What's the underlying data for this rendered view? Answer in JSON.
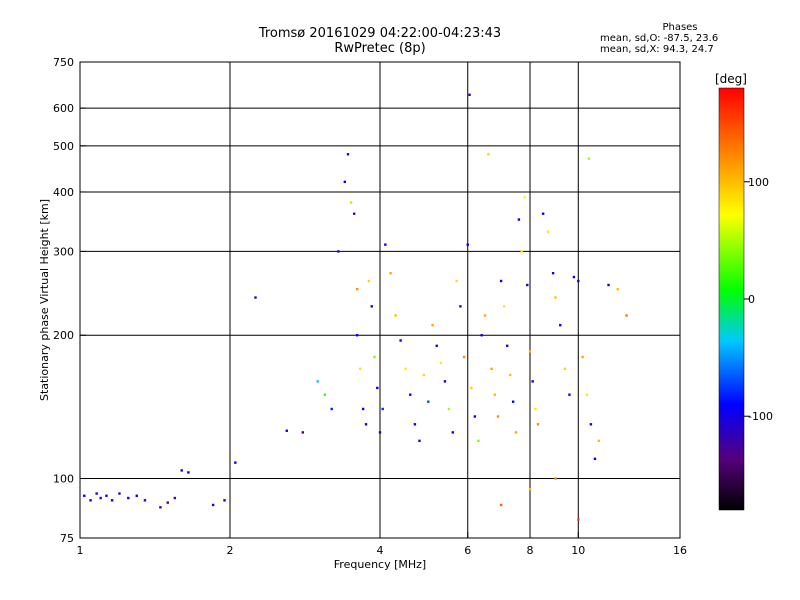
{
  "title": {
    "line1": "Tromsø 20161029 04:22:00-04:23:43",
    "line2": "RwPretec (8p)"
  },
  "phases": {
    "heading": "Phases",
    "o_stats": "mean, sd,O: -87.5, 23.6",
    "x_stats": "mean, sd,X:  94.3, 24.7"
  },
  "colorbar": {
    "label": "[deg]",
    "ticks": [
      {
        "value": 100,
        "label": "100"
      },
      {
        "value": 0,
        "label": "0"
      },
      {
        "value": -100,
        "label": "-100"
      }
    ],
    "range": [
      -180,
      180
    ]
  },
  "chart_data": {
    "type": "scatter",
    "xscale": "log",
    "yscale": "log",
    "xlabel": "Frequency [MHz]",
    "ylabel": "Stationary phase Virtual Height [km]",
    "xlim": [
      1,
      16
    ],
    "ylim": [
      75,
      750
    ],
    "xticks": [
      {
        "value": 1,
        "label": "1"
      },
      {
        "value": 2,
        "label": "2"
      },
      {
        "value": 4,
        "label": "4"
      },
      {
        "value": 6,
        "label": "6"
      },
      {
        "value": 8,
        "label": "8"
      },
      {
        "value": 10,
        "label": "10"
      },
      {
        "value": 16,
        "label": "16"
      }
    ],
    "yticks": [
      {
        "value": 75,
        "label": "75"
      },
      {
        "value": 100,
        "label": "100"
      },
      {
        "value": 200,
        "label": "200"
      },
      {
        "value": 300,
        "label": "300"
      },
      {
        "value": 400,
        "label": "400"
      },
      {
        "value": 500,
        "label": "500"
      },
      {
        "value": 600,
        "label": "600"
      },
      {
        "value": 750,
        "label": "750"
      }
    ],
    "grid_x": [
      2,
      4,
      6,
      8,
      10
    ],
    "grid_y": [
      100,
      200,
      300,
      400,
      500,
      600
    ],
    "series": [
      {
        "points": [
          [
            1.02,
            92,
            -95
          ],
          [
            1.05,
            90,
            -110
          ],
          [
            1.08,
            93,
            -100
          ],
          [
            1.1,
            91,
            -120
          ],
          [
            1.13,
            92,
            -105
          ],
          [
            1.16,
            90,
            -98
          ],
          [
            1.2,
            93,
            -115
          ],
          [
            1.25,
            91,
            -102
          ],
          [
            1.3,
            92,
            -95
          ],
          [
            1.35,
            90,
            -108
          ],
          [
            1.45,
            87,
            -130
          ],
          [
            1.5,
            89,
            -140
          ],
          [
            1.55,
            91,
            -125
          ],
          [
            1.6,
            104,
            -100
          ],
          [
            1.65,
            103,
            -90
          ],
          [
            1.85,
            88,
            -110
          ],
          [
            1.95,
            90,
            -100
          ],
          [
            2.05,
            108,
            -105
          ],
          [
            2.25,
            240,
            -120
          ],
          [
            2.6,
            126,
            -100
          ],
          [
            2.8,
            125,
            -140
          ],
          [
            3.0,
            160,
            -30
          ],
          [
            3.1,
            150,
            20
          ],
          [
            3.2,
            140,
            -80
          ],
          [
            3.3,
            300,
            -110
          ],
          [
            3.4,
            420,
            -100
          ],
          [
            3.45,
            480,
            -120
          ],
          [
            3.5,
            380,
            50
          ],
          [
            3.55,
            360,
            -130
          ],
          [
            3.6,
            250,
            120
          ],
          [
            3.6,
            200,
            -90
          ],
          [
            3.65,
            170,
            80
          ],
          [
            3.7,
            140,
            -105
          ],
          [
            3.75,
            130,
            -100
          ],
          [
            3.8,
            260,
            90
          ],
          [
            3.85,
            230,
            -110
          ],
          [
            3.9,
            180,
            40
          ],
          [
            3.95,
            155,
            -95
          ],
          [
            4.0,
            125,
            -110
          ],
          [
            4.05,
            140,
            -80
          ],
          [
            4.1,
            310,
            -100
          ],
          [
            4.2,
            270,
            110
          ],
          [
            4.3,
            220,
            100
          ],
          [
            4.4,
            195,
            -100
          ],
          [
            4.5,
            170,
            80
          ],
          [
            4.6,
            150,
            -100
          ],
          [
            4.7,
            130,
            -90
          ],
          [
            4.8,
            120,
            -110
          ],
          [
            4.9,
            165,
            90
          ],
          [
            5.0,
            145,
            -70
          ],
          [
            5.1,
            210,
            110
          ],
          [
            5.2,
            190,
            -120
          ],
          [
            5.3,
            175,
            80
          ],
          [
            5.4,
            160,
            -100
          ],
          [
            5.5,
            140,
            50
          ],
          [
            5.6,
            125,
            -105
          ],
          [
            5.7,
            260,
            85
          ],
          [
            5.8,
            230,
            -115
          ],
          [
            5.9,
            180,
            120
          ],
          [
            6.0,
            310,
            -90
          ],
          [
            6.05,
            640,
            -130
          ],
          [
            6.1,
            155,
            90
          ],
          [
            6.2,
            135,
            -100
          ],
          [
            6.3,
            120,
            40
          ],
          [
            6.4,
            200,
            -100
          ],
          [
            6.5,
            220,
            110
          ],
          [
            6.6,
            480,
            90
          ],
          [
            6.7,
            170,
            110
          ],
          [
            6.8,
            150,
            100
          ],
          [
            6.9,
            135,
            120
          ],
          [
            7.0,
            260,
            -100
          ],
          [
            7.1,
            230,
            80
          ],
          [
            7.2,
            190,
            -110
          ],
          [
            7.3,
            165,
            100
          ],
          [
            7.4,
            145,
            -90
          ],
          [
            7.5,
            125,
            110
          ],
          [
            7.6,
            350,
            -100
          ],
          [
            7.7,
            300,
            85
          ],
          [
            7.8,
            390,
            70
          ],
          [
            7.9,
            255,
            -105
          ],
          [
            8.0,
            185,
            100
          ],
          [
            8.1,
            160,
            -95
          ],
          [
            8.2,
            140,
            80
          ],
          [
            8.3,
            130,
            120
          ],
          [
            8.5,
            360,
            -100
          ],
          [
            8.7,
            330,
            80
          ],
          [
            8.9,
            270,
            -110
          ],
          [
            9.0,
            240,
            100
          ],
          [
            9.2,
            210,
            -100
          ],
          [
            9.4,
            170,
            90
          ],
          [
            9.6,
            150,
            -105
          ],
          [
            9.8,
            265,
            -110
          ],
          [
            10.0,
            260,
            -100
          ],
          [
            10.2,
            180,
            110
          ],
          [
            10.4,
            150,
            80
          ],
          [
            10.6,
            130,
            -100
          ],
          [
            10.8,
            110,
            -90
          ],
          [
            11.0,
            120,
            100
          ],
          [
            11.5,
            255,
            -105
          ],
          [
            12.0,
            250,
            100
          ],
          [
            12.5,
            220,
            130
          ],
          [
            10.5,
            470,
            50
          ],
          [
            10.0,
            82,
            150
          ],
          [
            9.0,
            100,
            120
          ],
          [
            8.0,
            95,
            100
          ],
          [
            7.0,
            88,
            140
          ]
        ]
      }
    ],
    "clim": [
      -180,
      180
    ]
  }
}
